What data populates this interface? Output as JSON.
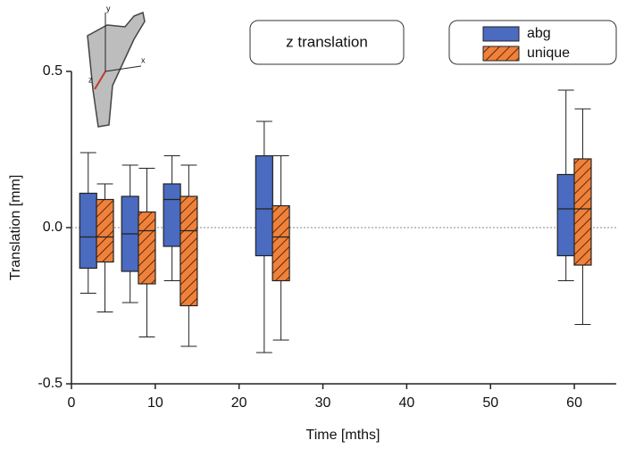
{
  "chart_data": {
    "type": "box",
    "title": "z translation",
    "x_label": "Time  [mths]",
    "y_label": "Translation  [mm]",
    "inset_labels": [
      "y",
      "x",
      "z"
    ],
    "xlim": [
      0,
      65
    ],
    "xticks": [
      0,
      10,
      20,
      30,
      40,
      50,
      60
    ],
    "ylim": [
      -0.5,
      0.5
    ],
    "yticks": [
      -0.5,
      {
        "value": 0,
        "label": "0.0"
      },
      0.5
    ],
    "zero_line": true,
    "legend": "top-right",
    "series": [
      {
        "name": "abg",
        "color": "#4a6bbf",
        "hatch": false,
        "x": [
          2,
          7,
          12,
          23,
          59
        ],
        "max": [
          0.24,
          0.2,
          0.23,
          0.34,
          0.44
        ],
        "q3": [
          0.11,
          0.1,
          0.14,
          0.23,
          0.17
        ],
        "median": [
          -0.03,
          -0.02,
          0.09,
          0.06,
          0.06
        ],
        "q1": [
          -0.13,
          -0.14,
          -0.06,
          -0.09,
          -0.09
        ],
        "min": [
          -0.21,
          -0.24,
          -0.17,
          -0.4,
          -0.17
        ]
      },
      {
        "name": "unique",
        "color": "#f0813a",
        "hatch": true,
        "x": [
          4,
          9,
          14,
          25,
          61
        ],
        "max": [
          0.14,
          0.19,
          0.2,
          0.23,
          0.38
        ],
        "q3": [
          0.09,
          0.05,
          0.1,
          0.07,
          0.22
        ],
        "median": [
          -0.03,
          -0.01,
          -0.01,
          -0.03,
          0.06
        ],
        "q1": [
          -0.11,
          -0.18,
          -0.25,
          -0.17,
          -0.12
        ],
        "min": [
          -0.27,
          -0.35,
          -0.38,
          -0.36,
          -0.31
        ]
      }
    ]
  }
}
